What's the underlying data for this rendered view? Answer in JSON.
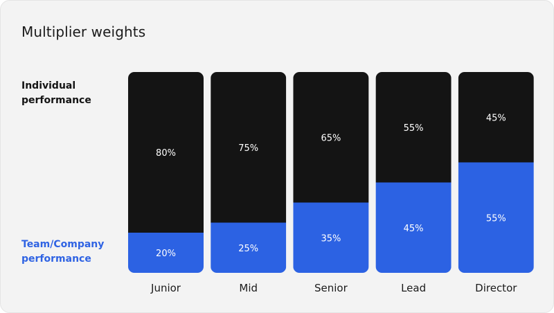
{
  "card": {
    "title": "Multiplier weights"
  },
  "labels": {
    "top": "Individual performance",
    "bottom": "Team/Company performance"
  },
  "colors": {
    "individual": "#141414",
    "team": "#2c62e3",
    "background": "#f3f3f3",
    "value_text": "#ffffff",
    "category_text": "#1a1a1a"
  },
  "chart_data": {
    "type": "bar",
    "stacked": true,
    "categories": [
      "Junior",
      "Mid",
      "Senior",
      "Lead",
      "Director"
    ],
    "series": [
      {
        "name": "Individual performance",
        "values": [
          80,
          75,
          65,
          55,
          45
        ],
        "value_labels": [
          "80%",
          "75%",
          "65%",
          "55%",
          "45%"
        ]
      },
      {
        "name": "Team/Company performance",
        "values": [
          20,
          25,
          35,
          45,
          55
        ],
        "value_labels": [
          "20%",
          "25%",
          "35%",
          "45%",
          "55%"
        ]
      }
    ],
    "ylim": [
      0,
      100
    ],
    "grid": false
  }
}
